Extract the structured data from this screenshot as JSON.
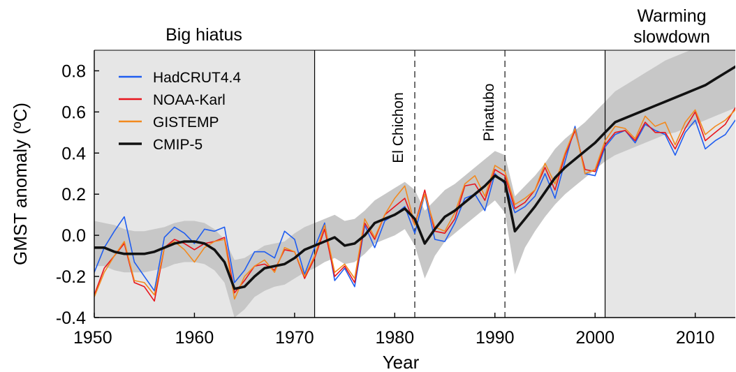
{
  "chart_data": {
    "type": "line",
    "title": "",
    "xlabel": "Year",
    "ylabel": "GMST anomaly (ºC)",
    "xlim": [
      1950,
      2014
    ],
    "ylim": [
      -0.4,
      0.9
    ],
    "xticks": [
      1950,
      1960,
      1970,
      1980,
      1990,
      2000,
      2010
    ],
    "yticks": [
      "-0.4",
      "-0.2",
      "0.0",
      "0.2",
      "0.4",
      "0.6",
      "0.8"
    ],
    "ytick_values": [
      -0.4,
      -0.2,
      0.0,
      0.2,
      0.4,
      0.6,
      0.8
    ],
    "legend": {
      "placement": "top-left"
    },
    "colors": {
      "background": "#e6e6e6",
      "spread": "#c7c7c7",
      "hadcrut": "#1f5df0",
      "noaa": "#e8141c",
      "gistemp": "#f28a1f",
      "cmip": "#111111"
    },
    "regions": [
      {
        "label": "Big hiatus",
        "label_lines": [
          "Big hiatus"
        ],
        "x_start": 1950,
        "x_end": 1972
      },
      {
        "label": "Warming slowdown",
        "label_lines": [
          "Warming",
          "slowdown"
        ],
        "x_start": 2001,
        "x_end": 2014
      }
    ],
    "events": [
      {
        "label": "El Chichon",
        "x": 1982
      },
      {
        "label": "Pinatubo",
        "x": 1991
      }
    ],
    "x": [
      1950,
      1951,
      1952,
      1953,
      1954,
      1955,
      1956,
      1957,
      1958,
      1959,
      1960,
      1961,
      1962,
      1963,
      1964,
      1965,
      1966,
      1967,
      1968,
      1969,
      1970,
      1971,
      1972,
      1973,
      1974,
      1975,
      1976,
      1977,
      1978,
      1979,
      1980,
      1981,
      1982,
      1983,
      1984,
      1985,
      1986,
      1987,
      1988,
      1989,
      1990,
      1991,
      1992,
      1993,
      1994,
      1995,
      1996,
      1997,
      1998,
      1999,
      2000,
      2001,
      2002,
      2003,
      2004,
      2005,
      2006,
      2007,
      2008,
      2009,
      2010,
      2011,
      2012,
      2013,
      2014
    ],
    "series": [
      {
        "name": "HadCRUT4.4",
        "color": "#1f5df0",
        "values": [
          -0.18,
          -0.06,
          0.02,
          0.09,
          -0.13,
          -0.2,
          -0.27,
          -0.01,
          0.04,
          0.01,
          -0.04,
          0.03,
          0.02,
          0.04,
          -0.23,
          -0.17,
          -0.08,
          -0.08,
          -0.11,
          0.02,
          -0.02,
          -0.19,
          -0.06,
          0.06,
          -0.22,
          -0.16,
          -0.25,
          0.05,
          -0.06,
          0.07,
          0.1,
          0.14,
          0.01,
          0.2,
          -0.02,
          -0.03,
          0.06,
          0.18,
          0.2,
          0.12,
          0.3,
          0.25,
          0.11,
          0.14,
          0.19,
          0.3,
          0.18,
          0.36,
          0.53,
          0.3,
          0.29,
          0.43,
          0.49,
          0.51,
          0.45,
          0.54,
          0.51,
          0.49,
          0.39,
          0.5,
          0.56,
          0.42,
          0.46,
          0.49,
          0.56
        ]
      },
      {
        "name": "NOAA-Karl",
        "color": "#e8141c",
        "values": [
          -0.29,
          -0.16,
          -0.1,
          -0.04,
          -0.23,
          -0.25,
          -0.32,
          -0.06,
          -0.02,
          -0.04,
          -0.07,
          -0.04,
          -0.03,
          -0.01,
          -0.28,
          -0.22,
          -0.15,
          -0.14,
          -0.17,
          -0.07,
          -0.08,
          -0.21,
          -0.11,
          0.03,
          -0.2,
          -0.15,
          -0.23,
          0.06,
          -0.02,
          0.1,
          0.14,
          0.18,
          0.05,
          0.22,
          0.02,
          0.01,
          0.08,
          0.24,
          0.25,
          0.17,
          0.32,
          0.29,
          0.13,
          0.16,
          0.22,
          0.33,
          0.22,
          0.39,
          0.51,
          0.32,
          0.31,
          0.44,
          0.5,
          0.51,
          0.46,
          0.55,
          0.5,
          0.5,
          0.42,
          0.52,
          0.6,
          0.46,
          0.5,
          0.54,
          0.62
        ]
      },
      {
        "name": "GISTEMP",
        "color": "#f28a1f",
        "values": [
          -0.3,
          -0.18,
          -0.1,
          -0.03,
          -0.22,
          -0.23,
          -0.29,
          -0.06,
          -0.03,
          -0.07,
          -0.13,
          -0.06,
          -0.03,
          -0.02,
          -0.31,
          -0.2,
          -0.15,
          -0.12,
          -0.18,
          -0.06,
          -0.08,
          -0.2,
          -0.1,
          0.05,
          -0.18,
          -0.14,
          -0.21,
          0.08,
          -0.01,
          0.1,
          0.18,
          0.24,
          0.05,
          0.2,
          0.04,
          0.02,
          0.11,
          0.25,
          0.29,
          0.19,
          0.34,
          0.31,
          0.15,
          0.18,
          0.22,
          0.35,
          0.25,
          0.4,
          0.52,
          0.3,
          0.32,
          0.46,
          0.53,
          0.52,
          0.47,
          0.58,
          0.53,
          0.55,
          0.44,
          0.55,
          0.61,
          0.49,
          0.53,
          0.56,
          0.61
        ]
      },
      {
        "name": "CMIP-5",
        "color": "#111111",
        "values": [
          -0.06,
          -0.06,
          -0.08,
          -0.09,
          -0.09,
          -0.09,
          -0.08,
          -0.06,
          -0.04,
          -0.03,
          -0.03,
          -0.04,
          -0.07,
          -0.13,
          -0.26,
          -0.25,
          -0.2,
          -0.16,
          -0.15,
          -0.14,
          -0.11,
          -0.07,
          -0.05,
          -0.03,
          -0.01,
          -0.05,
          -0.04,
          0.0,
          0.06,
          0.08,
          0.1,
          0.13,
          0.08,
          -0.04,
          0.03,
          0.09,
          0.12,
          0.16,
          0.2,
          0.24,
          0.29,
          0.26,
          0.02,
          0.08,
          0.14,
          0.21,
          0.28,
          0.33,
          0.37,
          0.41,
          0.45,
          0.5,
          0.55,
          0.57,
          0.59,
          0.61,
          0.63,
          0.65,
          0.67,
          0.69,
          0.71,
          0.73,
          0.76,
          0.79,
          0.82
        ]
      }
    ],
    "spread": {
      "name": "CMIP-5 range",
      "lower": [
        -0.15,
        -0.15,
        -0.17,
        -0.18,
        -0.18,
        -0.18,
        -0.17,
        -0.16,
        -0.14,
        -0.13,
        -0.13,
        -0.14,
        -0.17,
        -0.23,
        -0.4,
        -0.36,
        -0.3,
        -0.27,
        -0.25,
        -0.24,
        -0.21,
        -0.18,
        -0.16,
        -0.13,
        -0.11,
        -0.14,
        -0.13,
        -0.09,
        -0.04,
        -0.02,
        0.0,
        0.03,
        -0.05,
        -0.21,
        -0.1,
        -0.03,
        0.01,
        0.05,
        0.09,
        0.13,
        0.17,
        0.11,
        -0.19,
        -0.06,
        0.02,
        0.09,
        0.15,
        0.2,
        0.24,
        0.28,
        0.32,
        0.36,
        0.39,
        0.41,
        0.43,
        0.45,
        0.47,
        0.49,
        0.5,
        0.52,
        0.54,
        0.56,
        0.58,
        0.6,
        0.62
      ],
      "upper": [
        0.07,
        0.06,
        0.05,
        0.03,
        0.02,
        0.02,
        0.03,
        0.04,
        0.06,
        0.07,
        0.07,
        0.06,
        0.03,
        -0.02,
        -0.12,
        -0.11,
        -0.08,
        -0.05,
        -0.04,
        -0.03,
        0.01,
        0.04,
        0.06,
        0.08,
        0.1,
        0.07,
        0.08,
        0.12,
        0.17,
        0.2,
        0.23,
        0.26,
        0.22,
        0.12,
        0.17,
        0.22,
        0.25,
        0.29,
        0.33,
        0.37,
        0.41,
        0.39,
        0.19,
        0.24,
        0.29,
        0.35,
        0.42,
        0.47,
        0.51,
        0.55,
        0.6,
        0.65,
        0.7,
        0.73,
        0.76,
        0.79,
        0.82,
        0.85,
        0.87,
        0.89,
        0.91,
        0.93,
        0.96,
        0.99,
        1.02
      ]
    }
  }
}
